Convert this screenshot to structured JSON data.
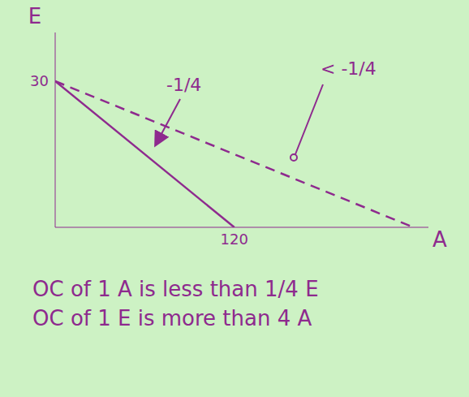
{
  "chart_data": {
    "type": "line",
    "x_label": "A",
    "y_label": "E",
    "x": [
      0,
      120,
      240
    ],
    "series": [
      {
        "values": [
          30,
          0,
          null
        ],
        "color": "#8e2a8e",
        "line_style": "solid",
        "marker": "none"
      },
      {
        "values": [
          30,
          null,
          0
        ],
        "color": "#8e2a8e",
        "line_style": "dashed",
        "marker": "none"
      }
    ],
    "xlim": [
      0,
      250
    ],
    "ylim": [
      0,
      40
    ],
    "xticks": [
      120
    ],
    "yticks": [
      30
    ],
    "grid": false,
    "annotations": [
      "-1/4",
      "< -1/4"
    ],
    "caption": [
      "OC of 1 A is less than 1/4 E",
      "OC of 1 E is more than 4 A"
    ]
  }
}
